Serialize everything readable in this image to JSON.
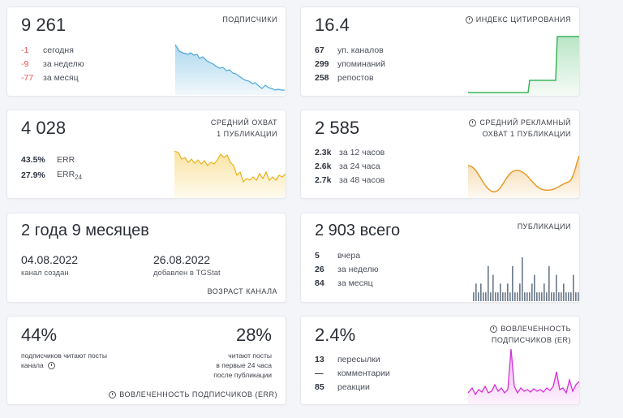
{
  "subscribers": {
    "value": "9 261",
    "caption": "ПОДПИСЧИКИ",
    "rows": [
      {
        "num": "-1",
        "label": "сегодня"
      },
      {
        "num": "-9",
        "label": "за неделю"
      },
      {
        "num": "-77",
        "label": "за месяц"
      }
    ],
    "chart_color": "#4aa8d8"
  },
  "citation": {
    "value": "16.4",
    "caption": "ИНДЕКС ЦИТИРОВАНИЯ",
    "rows": [
      {
        "num": "67",
        "label": "уп. каналов"
      },
      {
        "num": "299",
        "label": "упоминаний"
      },
      {
        "num": "258",
        "label": "репостов"
      }
    ],
    "chart_color": "#3cb55c"
  },
  "reach": {
    "value": "4 028",
    "caption_line1": "СРЕДНИЙ ОХВАТ",
    "caption_line2": "1 ПУБЛИКАЦИИ",
    "rows": [
      {
        "num": "43.5%",
        "label": "ERR"
      },
      {
        "num": "27.9%",
        "label": "ERR",
        "sub": "24"
      }
    ],
    "chart_color": "#f2c230"
  },
  "ad_reach": {
    "value": "2 585",
    "caption_line1": "СРЕДНИЙ РЕКЛАМНЫЙ",
    "caption_line2": "ОХВАТ 1 ПУБЛИКАЦИИ",
    "rows": [
      {
        "num": "2.3k",
        "label": "за 12 часов"
      },
      {
        "num": "2.6k",
        "label": "за 24 часа"
      },
      {
        "num": "2.7k",
        "label": "за 48 часов"
      }
    ],
    "chart_color": "#e89a28"
  },
  "age": {
    "value": "2 года 9 месяцев",
    "created_date": "04.08.2022",
    "created_label": "канал создан",
    "added_date": "26.08.2022",
    "added_label": "добавлен в TGStat",
    "caption": "ВОЗРАСТ КАНАЛА"
  },
  "publications": {
    "value": "2 903 всего",
    "caption": "ПУБЛИКАЦИИ",
    "rows": [
      {
        "num": "5",
        "label": "вчера"
      },
      {
        "num": "26",
        "label": "за неделю"
      },
      {
        "num": "84",
        "label": "за месяц"
      }
    ],
    "chart_color": "#6d7a8c",
    "bars": [
      1,
      2,
      1,
      2,
      1,
      1,
      4,
      1,
      3,
      1,
      1,
      2,
      1,
      1,
      2,
      1,
      4,
      1,
      1,
      2,
      5,
      1,
      1,
      1,
      2,
      3,
      1,
      1,
      1,
      2,
      1,
      4,
      1,
      1,
      3,
      1,
      1,
      2,
      1,
      1,
      1,
      3,
      1,
      1
    ]
  },
  "err": {
    "left_value": "44%",
    "left_text": "подписчиков читают посты канала",
    "right_value": "28%",
    "right_line1": "читают посты",
    "right_line2": "в первые 24 часа",
    "right_line3": "после публикации",
    "caption": "ВОВЛЕЧЕННОСТЬ ПОДПИСЧИКОВ (ERR)"
  },
  "er": {
    "value": "2.4%",
    "caption_line1": "ВОВЛЕЧЕННОСТЬ",
    "caption_line2": "ПОДПИСЧИКОВ (ER)",
    "rows": [
      {
        "num": "13",
        "label": "пересылки"
      },
      {
        "num": "—",
        "label": "комментарии"
      },
      {
        "num": "85",
        "label": "реакции"
      }
    ],
    "chart_color": "#d62fd6"
  }
}
